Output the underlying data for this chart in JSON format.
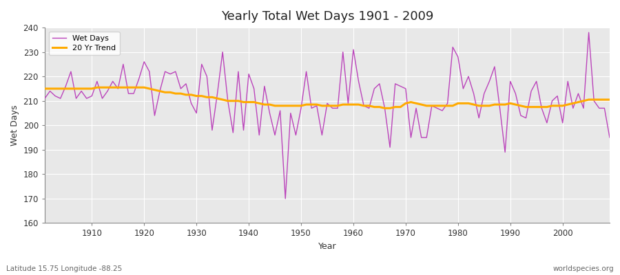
{
  "title": "Yearly Total Wet Days 1901 - 2009",
  "xlabel": "Year",
  "ylabel": "Wet Days",
  "subtitle_left": "Latitude 15.75 Longitude -88.25",
  "subtitle_right": "worldspecies.org",
  "wet_days_color": "#bb44bb",
  "trend_color": "#ffaa00",
  "plot_bg_color": "#e8e8e8",
  "fig_bg_color": "#ffffff",
  "ylim": [
    160,
    240
  ],
  "yticks": [
    160,
    170,
    180,
    190,
    200,
    210,
    220,
    230,
    240
  ],
  "xticks": [
    1910,
    1920,
    1930,
    1940,
    1950,
    1960,
    1970,
    1980,
    1990,
    2000
  ],
  "xlim": [
    1901,
    2009
  ],
  "years": [
    1901,
    1902,
    1903,
    1904,
    1905,
    1906,
    1907,
    1908,
    1909,
    1910,
    1911,
    1912,
    1913,
    1914,
    1915,
    1916,
    1917,
    1918,
    1919,
    1920,
    1921,
    1922,
    1923,
    1924,
    1925,
    1926,
    1927,
    1928,
    1929,
    1930,
    1931,
    1932,
    1933,
    1934,
    1935,
    1936,
    1937,
    1938,
    1939,
    1940,
    1941,
    1942,
    1943,
    1944,
    1945,
    1946,
    1947,
    1948,
    1949,
    1950,
    1951,
    1952,
    1953,
    1954,
    1955,
    1956,
    1957,
    1958,
    1959,
    1960,
    1961,
    1962,
    1963,
    1964,
    1965,
    1966,
    1967,
    1968,
    1969,
    1970,
    1971,
    1972,
    1973,
    1974,
    1975,
    1976,
    1977,
    1978,
    1979,
    1980,
    1981,
    1982,
    1983,
    1984,
    1985,
    1986,
    1987,
    1988,
    1989,
    1990,
    1991,
    1992,
    1993,
    1994,
    1995,
    1996,
    1997,
    1998,
    1999,
    2000,
    2001,
    2002,
    2003,
    2004,
    2005,
    2006,
    2007,
    2008,
    2009
  ],
  "wet_days": [
    211,
    214,
    212,
    211,
    216,
    222,
    211,
    214,
    211,
    212,
    218,
    211,
    214,
    218,
    215,
    225,
    213,
    213,
    219,
    226,
    222,
    204,
    214,
    222,
    221,
    222,
    215,
    217,
    209,
    205,
    225,
    220,
    198,
    213,
    230,
    210,
    197,
    222,
    198,
    221,
    215,
    196,
    216,
    205,
    196,
    206,
    170,
    205,
    196,
    207,
    222,
    207,
    208,
    196,
    209,
    207,
    207,
    230,
    209,
    231,
    218,
    208,
    207,
    215,
    217,
    207,
    191,
    217,
    216,
    215,
    195,
    207,
    195,
    195,
    208,
    207,
    206,
    209,
    232,
    228,
    215,
    220,
    213,
    203,
    213,
    218,
    224,
    207,
    189,
    218,
    213,
    204,
    203,
    214,
    218,
    207,
    201,
    210,
    212,
    201,
    218,
    207,
    213,
    207,
    238,
    210,
    207,
    207,
    195
  ],
  "trend": [
    215.0,
    215.0,
    215.0,
    215.0,
    215.0,
    215.0,
    215.0,
    215.0,
    215.0,
    215.0,
    215.5,
    215.5,
    215.5,
    215.5,
    215.5,
    215.5,
    215.5,
    215.5,
    215.5,
    215.5,
    215.0,
    214.5,
    214.0,
    213.5,
    213.5,
    213.0,
    213.0,
    212.5,
    212.5,
    212.0,
    212.0,
    211.5,
    211.5,
    211.0,
    210.5,
    210.0,
    210.0,
    210.0,
    209.5,
    209.5,
    209.5,
    209.0,
    208.5,
    208.5,
    208.0,
    208.0,
    208.0,
    208.0,
    208.0,
    208.0,
    208.5,
    208.5,
    208.5,
    208.0,
    208.0,
    208.0,
    208.0,
    208.5,
    208.5,
    208.5,
    208.5,
    208.0,
    208.0,
    207.5,
    207.5,
    207.0,
    207.0,
    207.5,
    207.5,
    209.0,
    209.5,
    209.0,
    208.5,
    208.0,
    208.0,
    208.0,
    208.0,
    208.0,
    208.0,
    209.0,
    209.0,
    209.0,
    208.5,
    208.0,
    208.0,
    208.0,
    208.5,
    208.5,
    208.5,
    209.0,
    208.5,
    208.0,
    207.5,
    207.5,
    207.5,
    207.5,
    207.5,
    208.0,
    208.0,
    208.0,
    208.5,
    209.0,
    209.5,
    210.0,
    210.5,
    210.5,
    210.5,
    210.5,
    210.5
  ]
}
